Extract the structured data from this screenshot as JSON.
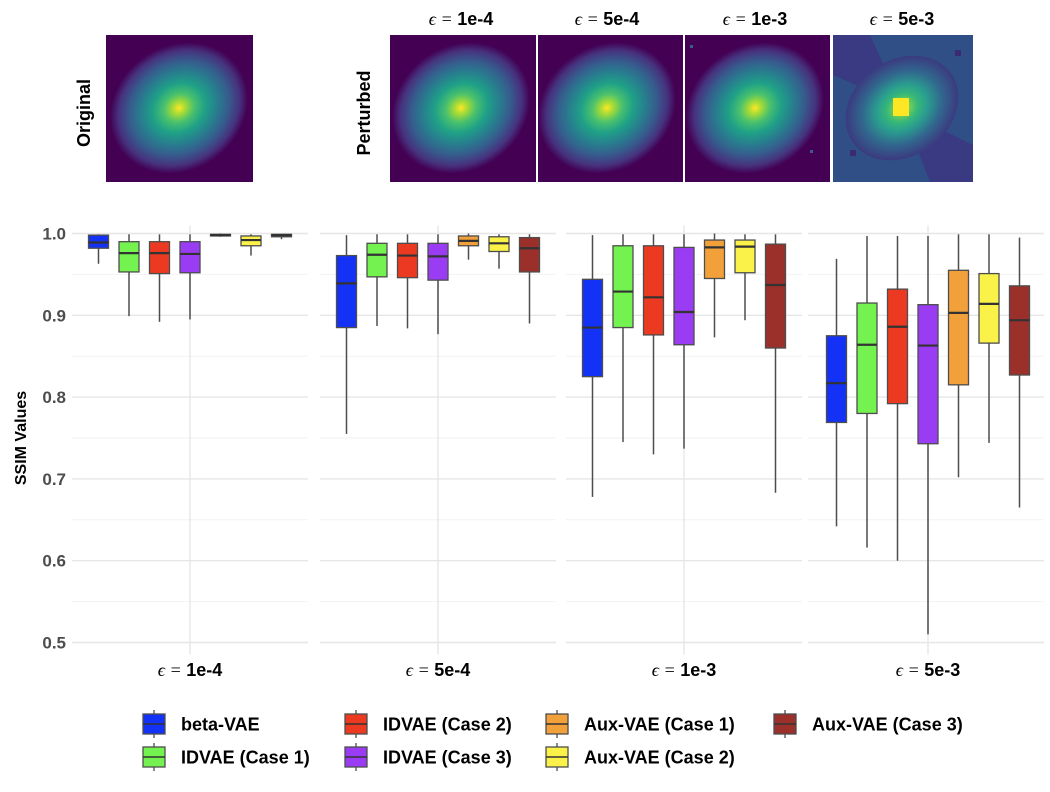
{
  "images": {
    "original_label": "Original",
    "perturbed_label": "Perturbed",
    "epsilon_symbol": "ϵ",
    "columns": [
      {
        "title": "ϵ = 1e-4",
        "eps": "1e-4"
      },
      {
        "title": "ϵ = 5e-4",
        "eps": "5e-4"
      },
      {
        "title": "ϵ = 1e-3",
        "eps": "1e-3"
      },
      {
        "title": "ϵ = 5e-3",
        "eps": "5e-3"
      }
    ]
  },
  "chart_data": {
    "type": "boxplot",
    "title": "",
    "xlabel": "",
    "ylabel": "SSIM Values",
    "ylim": [
      0.5,
      1.0
    ],
    "yticks": [
      0.5,
      0.6,
      0.7,
      0.8,
      0.9,
      1.0
    ],
    "yticklabels": [
      "0.5",
      "0.6",
      "0.7",
      "0.8",
      "0.9",
      "1.0"
    ],
    "grid": true,
    "legend_position": "bottom",
    "panels": [
      "ϵ = 1e-4",
      "ϵ = 5e-4",
      "ϵ = 1e-3",
      "ϵ = 5e-3"
    ],
    "series": [
      {
        "name": "beta-VAE",
        "color": "#1432f5",
        "boxes": [
          {
            "min": 0.963,
            "q1": 0.982,
            "median": 0.989,
            "q3": 0.998,
            "max": 0.999
          },
          {
            "min": 0.755,
            "q1": 0.885,
            "median": 0.939,
            "q3": 0.973,
            "max": 0.998
          },
          {
            "min": 0.678,
            "q1": 0.825,
            "median": 0.885,
            "q3": 0.944,
            "max": 0.998
          },
          {
            "min": 0.642,
            "q1": 0.769,
            "median": 0.817,
            "q3": 0.875,
            "max": 0.969
          }
        ]
      },
      {
        "name": "IDVAE (Case 1)",
        "color": "#73f250",
        "boxes": [
          {
            "min": 0.899,
            "q1": 0.953,
            "median": 0.976,
            "q3": 0.99,
            "max": 0.999
          },
          {
            "min": 0.887,
            "q1": 0.947,
            "median": 0.974,
            "q3": 0.988,
            "max": 0.999
          },
          {
            "min": 0.745,
            "q1": 0.885,
            "median": 0.929,
            "q3": 0.985,
            "max": 0.999
          },
          {
            "min": 0.616,
            "q1": 0.78,
            "median": 0.864,
            "q3": 0.915,
            "max": 0.997
          }
        ]
      },
      {
        "name": "IDVAE (Case 2)",
        "color": "#ec3a22",
        "boxes": [
          {
            "min": 0.892,
            "q1": 0.951,
            "median": 0.976,
            "q3": 0.99,
            "max": 0.999
          },
          {
            "min": 0.884,
            "q1": 0.946,
            "median": 0.973,
            "q3": 0.988,
            "max": 0.999
          },
          {
            "min": 0.73,
            "q1": 0.876,
            "median": 0.922,
            "q3": 0.985,
            "max": 0.999
          },
          {
            "min": 0.6,
            "q1": 0.792,
            "median": 0.886,
            "q3": 0.932,
            "max": 0.997
          }
        ]
      },
      {
        "name": "IDVAE (Case 3)",
        "color": "#9a3cf3",
        "boxes": [
          {
            "min": 0.895,
            "q1": 0.952,
            "median": 0.975,
            "q3": 0.99,
            "max": 0.999
          },
          {
            "min": 0.877,
            "q1": 0.943,
            "median": 0.972,
            "q3": 0.988,
            "max": 0.999
          },
          {
            "min": 0.737,
            "q1": 0.864,
            "median": 0.904,
            "q3": 0.983,
            "max": 0.999
          },
          {
            "min": 0.51,
            "q1": 0.743,
            "median": 0.863,
            "q3": 0.913,
            "max": 0.997
          }
        ]
      },
      {
        "name": "Aux-VAE (Case 1)",
        "color": "#f2a13a",
        "boxes": [
          {
            "min": 0.996,
            "q1": 0.997,
            "median": 0.998,
            "q3": 0.999,
            "max": 1.0
          },
          {
            "min": 0.968,
            "q1": 0.985,
            "median": 0.991,
            "q3": 0.997,
            "max": 1.0
          },
          {
            "min": 0.873,
            "q1": 0.945,
            "median": 0.983,
            "q3": 0.992,
            "max": 1.0
          },
          {
            "min": 0.702,
            "q1": 0.815,
            "median": 0.903,
            "q3": 0.955,
            "max": 0.999
          }
        ]
      },
      {
        "name": "Aux-VAE (Case 2)",
        "color": "#faf249",
        "boxes": [
          {
            "min": 0.973,
            "q1": 0.985,
            "median": 0.992,
            "q3": 0.997,
            "max": 0.999
          },
          {
            "min": 0.957,
            "q1": 0.978,
            "median": 0.988,
            "q3": 0.996,
            "max": 0.999
          },
          {
            "min": 0.894,
            "q1": 0.952,
            "median": 0.984,
            "q3": 0.992,
            "max": 0.999
          },
          {
            "min": 0.744,
            "q1": 0.866,
            "median": 0.914,
            "q3": 0.951,
            "max": 0.999
          }
        ]
      },
      {
        "name": "Aux-VAE (Case 3)",
        "color": "#9b2f2a",
        "boxes": [
          {
            "min": 0.993,
            "q1": 0.996,
            "median": 0.998,
            "q3": 0.999,
            "max": 0.999
          },
          {
            "min": 0.89,
            "q1": 0.953,
            "median": 0.982,
            "q3": 0.995,
            "max": 0.999
          },
          {
            "min": 0.683,
            "q1": 0.86,
            "median": 0.937,
            "q3": 0.987,
            "max": 0.999
          },
          {
            "min": 0.665,
            "q1": 0.827,
            "median": 0.894,
            "q3": 0.936,
            "max": 0.995
          }
        ]
      }
    ]
  }
}
